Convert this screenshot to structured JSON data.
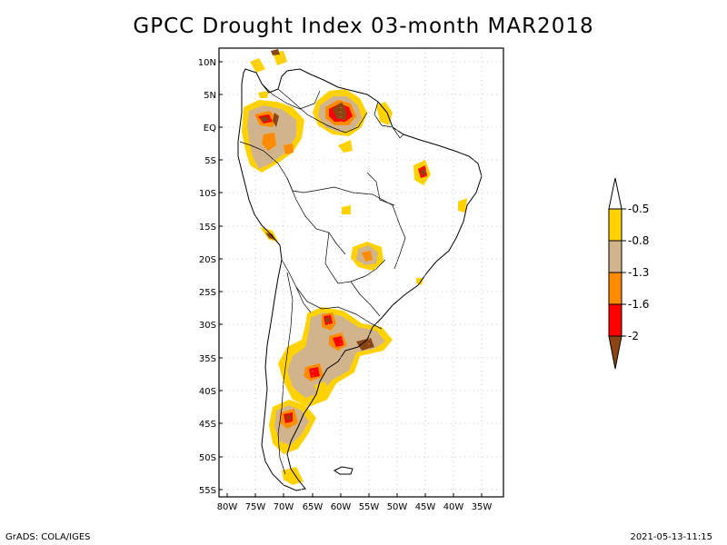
{
  "title": "GPCC Drought Index 03-month MAR2018",
  "footer_left": "GrADS: COLA/IGES",
  "footer_right": "2021-05-13-11:15",
  "map": {
    "lon_ticks": [
      "80W",
      "75W",
      "70W",
      "65W",
      "60W",
      "55W",
      "50W",
      "45W",
      "40W",
      "35W"
    ],
    "lat_ticks": [
      "10N",
      "5N",
      "EQ",
      "5S",
      "10S",
      "15S",
      "20S",
      "25S",
      "30S",
      "35S",
      "40S",
      "45S",
      "50S",
      "55S"
    ],
    "lon_range": [
      -81,
      -33
    ],
    "lat_range": [
      12,
      -56
    ],
    "grid": "dotted"
  },
  "legend": {
    "labels": [
      "-0.5",
      "-0.8",
      "-1.3",
      "-1.6",
      "-2"
    ],
    "colors": [
      "#ffffff",
      "#ffd200",
      "#d2b48c",
      "#ff8c00",
      "#ff0000",
      "#8b4513"
    ]
  },
  "colors": {
    "moderate": "#ffd200",
    "severe": "#d2b48c",
    "very_severe": "#ff8c00",
    "extreme": "#ff0000",
    "exceptional": "#8b4513"
  }
}
